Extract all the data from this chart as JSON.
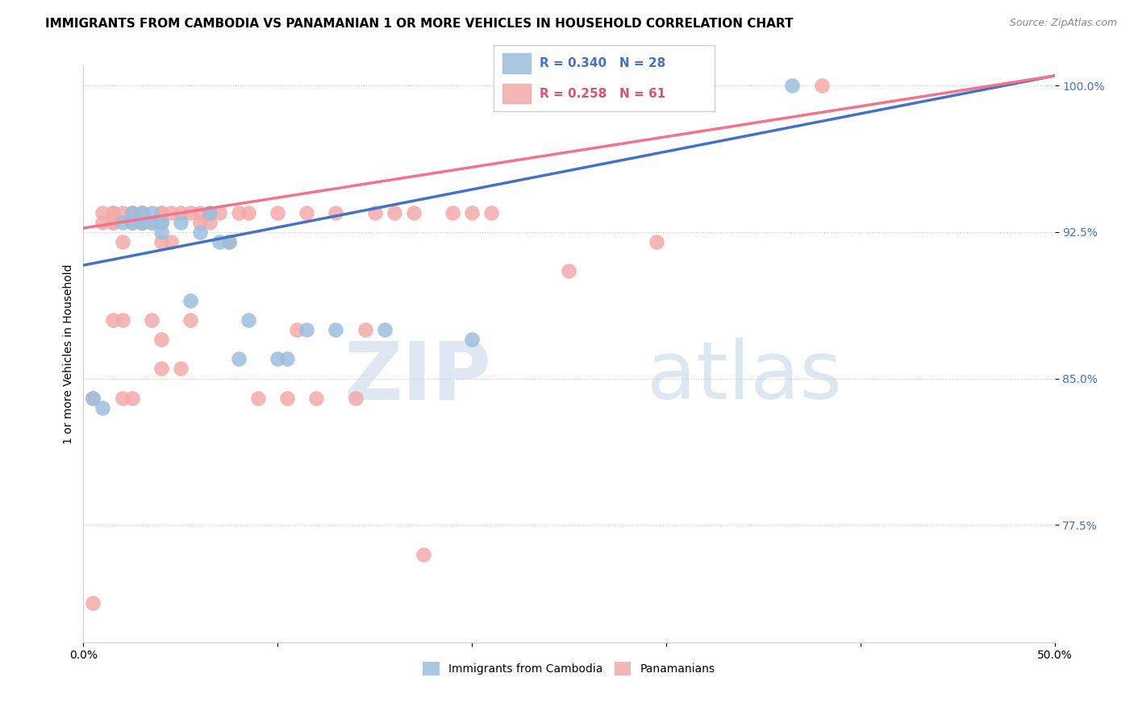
{
  "title": "IMMIGRANTS FROM CAMBODIA VS PANAMANIAN 1 OR MORE VEHICLES IN HOUSEHOLD CORRELATION CHART",
  "source": "Source: ZipAtlas.com",
  "ylabel": "1 or more Vehicles in Household",
  "xmin": 0.0,
  "xmax": 0.5,
  "ymin": 0.715,
  "ymax": 1.01,
  "yticks": [
    0.775,
    0.85,
    0.925,
    1.0
  ],
  "ytick_labels": [
    "77.5%",
    "85.0%",
    "92.5%",
    "100.0%"
  ],
  "xticks": [
    0.0,
    0.1,
    0.2,
    0.3,
    0.4,
    0.5
  ],
  "xtick_labels": [
    "0.0%",
    "",
    "",
    "",
    "",
    "50.0%"
  ],
  "legend_blue_R": "R = 0.340",
  "legend_blue_N": "N = 28",
  "legend_pink_R": "R = 0.258",
  "legend_pink_N": "N = 61",
  "blue_color": "#9BBFDD",
  "pink_color": "#F4AAAA",
  "line_blue_color": "#4472C4",
  "line_pink_color": "#F4728A",
  "watermark_zip": "ZIP",
  "watermark_atlas": "atlas",
  "title_fontsize": 11,
  "label_fontsize": 10,
  "tick_fontsize": 10,
  "blue_scatter_x": [
    0.005,
    0.01,
    0.02,
    0.025,
    0.025,
    0.03,
    0.03,
    0.03,
    0.035,
    0.035,
    0.04,
    0.04,
    0.04,
    0.05,
    0.055,
    0.06,
    0.065,
    0.07,
    0.075,
    0.08,
    0.085,
    0.1,
    0.105,
    0.115,
    0.13,
    0.155,
    0.2,
    0.365
  ],
  "blue_scatter_y": [
    0.84,
    0.835,
    0.93,
    0.935,
    0.93,
    0.935,
    0.93,
    0.93,
    0.93,
    0.935,
    0.93,
    0.925,
    0.93,
    0.93,
    0.89,
    0.925,
    0.935,
    0.92,
    0.92,
    0.86,
    0.88,
    0.86,
    0.86,
    0.875,
    0.875,
    0.875,
    0.87,
    1.0
  ],
  "pink_scatter_x": [
    0.005,
    0.005,
    0.01,
    0.01,
    0.015,
    0.015,
    0.015,
    0.015,
    0.015,
    0.02,
    0.02,
    0.02,
    0.02,
    0.025,
    0.025,
    0.025,
    0.03,
    0.03,
    0.03,
    0.03,
    0.03,
    0.035,
    0.035,
    0.04,
    0.04,
    0.04,
    0.04,
    0.04,
    0.045,
    0.045,
    0.05,
    0.05,
    0.055,
    0.055,
    0.06,
    0.06,
    0.065,
    0.065,
    0.07,
    0.075,
    0.08,
    0.085,
    0.09,
    0.1,
    0.105,
    0.11,
    0.115,
    0.12,
    0.13,
    0.14,
    0.145,
    0.15,
    0.16,
    0.17,
    0.175,
    0.19,
    0.2,
    0.21,
    0.25,
    0.295,
    0.38
  ],
  "pink_scatter_y": [
    0.735,
    0.84,
    0.93,
    0.935,
    0.88,
    0.93,
    0.935,
    0.93,
    0.935,
    0.84,
    0.88,
    0.92,
    0.935,
    0.84,
    0.93,
    0.935,
    0.93,
    0.93,
    0.935,
    0.935,
    0.93,
    0.88,
    0.93,
    0.855,
    0.87,
    0.92,
    0.935,
    0.935,
    0.92,
    0.935,
    0.855,
    0.935,
    0.88,
    0.935,
    0.93,
    0.935,
    0.93,
    0.935,
    0.935,
    0.92,
    0.935,
    0.935,
    0.84,
    0.935,
    0.84,
    0.875,
    0.935,
    0.84,
    0.935,
    0.84,
    0.875,
    0.935,
    0.935,
    0.935,
    0.76,
    0.935,
    0.935,
    0.935,
    0.905,
    0.92,
    1.0
  ],
  "line_blue_x0": 0.0,
  "line_blue_y0": 0.908,
  "line_blue_x1": 0.5,
  "line_blue_y1": 1.005,
  "line_pink_x0": 0.0,
  "line_pink_y0": 0.927,
  "line_pink_x1": 0.5,
  "line_pink_y1": 1.005
}
